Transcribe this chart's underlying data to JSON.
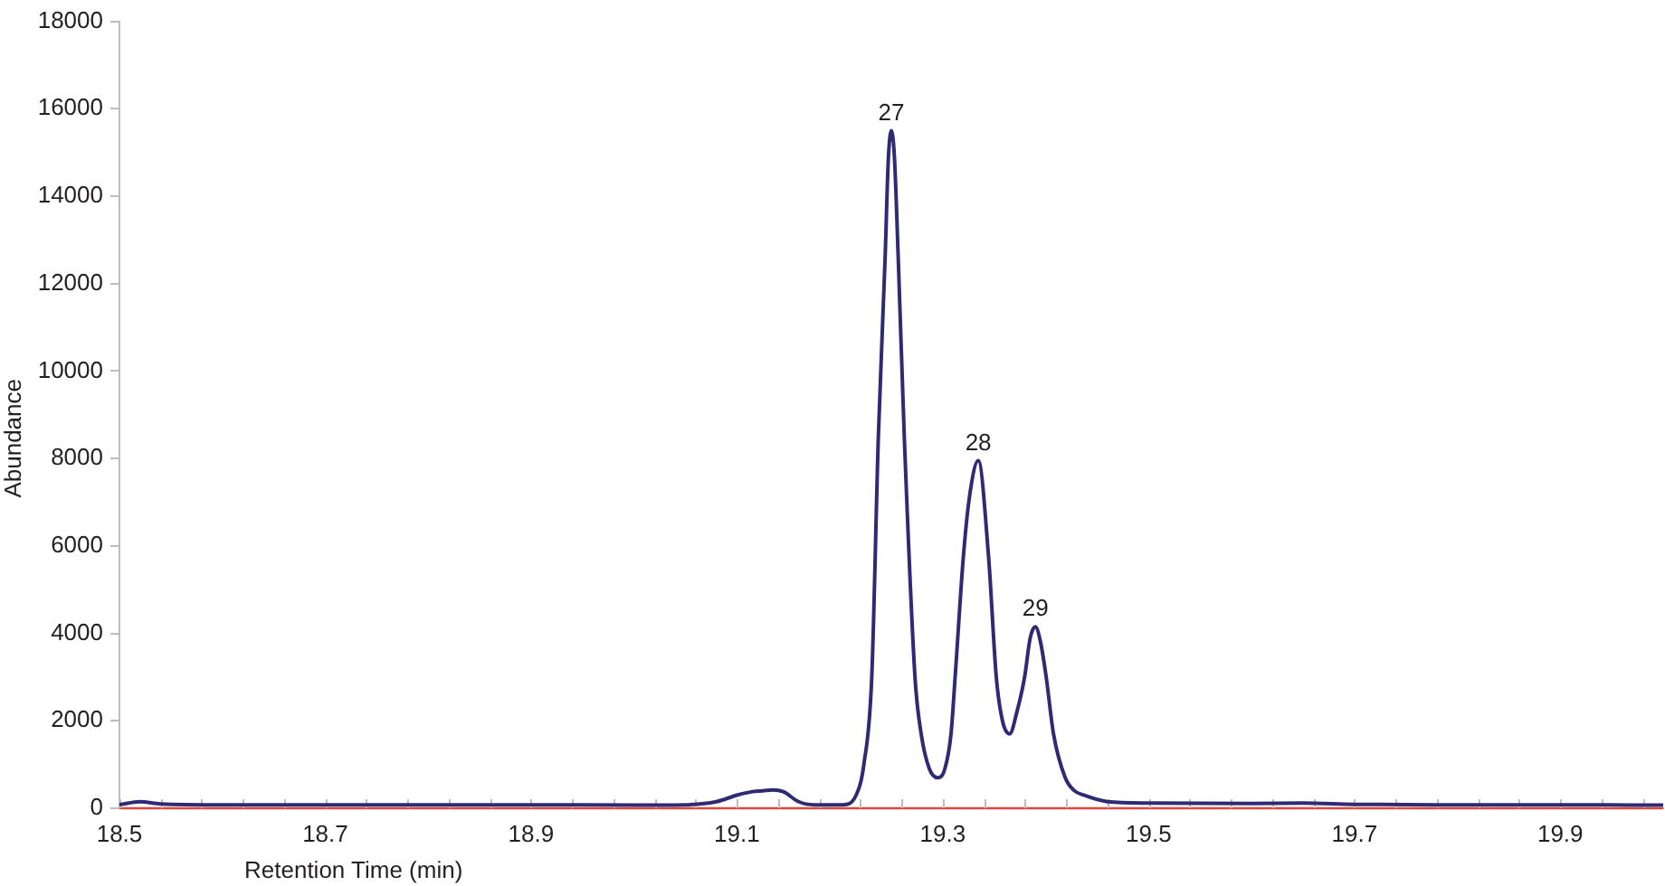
{
  "chart_data": {
    "type": "line",
    "xlabel": "Retention Time (min)",
    "ylabel": "Abundance",
    "x": [
      18.5,
      18.52,
      18.54,
      18.6,
      18.7,
      18.8,
      18.9,
      19.0,
      19.05,
      19.08,
      19.1,
      19.115,
      19.125,
      19.135,
      19.145,
      19.16,
      19.175,
      19.203,
      19.2158,
      19.2233,
      19.231,
      19.2374,
      19.244,
      19.247,
      19.25,
      19.253,
      19.2567,
      19.2626,
      19.273,
      19.279,
      19.287,
      19.295,
      19.302,
      19.308,
      19.312,
      19.32,
      19.3258,
      19.3345,
      19.3445,
      19.352,
      19.358,
      19.365,
      19.372,
      19.3795,
      19.385,
      19.39,
      19.395,
      19.4005,
      19.4076,
      19.419,
      19.428,
      19.437,
      19.46,
      19.5,
      19.6,
      19.65,
      19.7,
      19.8,
      19.9,
      20.0
    ],
    "series": [
      {
        "color": "#2e2b74",
        "values": [
          80,
          150,
          100,
          80,
          80,
          80,
          80,
          70,
          80,
          150,
          300,
          380,
          400,
          420,
          380,
          150,
          80,
          80,
          300,
          1000,
          3000,
          8500,
          12600,
          14800,
          15500,
          14900,
          12600,
          8500,
          3000,
          1700,
          900,
          700,
          900,
          1700,
          3000,
          5750,
          7100,
          7950,
          5750,
          3000,
          2000,
          1700,
          2200,
          3000,
          3900,
          4150,
          3800,
          3000,
          1700,
          700,
          400,
          300,
          150,
          120,
          110,
          120,
          90,
          80,
          80,
          70
        ]
      }
    ],
    "xlim": [
      18.5,
      20.0
    ],
    "ylim": [
      0,
      18000
    ],
    "xticks": [
      18.5,
      {
        "value": 18.54,
        "label": null
      },
      {
        "value": 18.58,
        "label": null
      },
      {
        "value": 18.62,
        "label": null
      },
      {
        "value": 18.66,
        "label": null
      },
      18.7,
      {
        "value": 18.74,
        "label": null
      },
      {
        "value": 18.78,
        "label": null
      },
      {
        "value": 18.82,
        "label": null
      },
      {
        "value": 18.86,
        "label": null
      },
      18.9,
      {
        "value": 18.94,
        "label": null
      },
      {
        "value": 18.98,
        "label": null
      },
      {
        "value": 19.02,
        "label": null
      },
      {
        "value": 19.06,
        "label": null
      },
      19.1,
      {
        "value": 19.14,
        "label": null
      },
      {
        "value": 19.18,
        "label": null
      },
      {
        "value": 19.22,
        "label": null
      },
      {
        "value": 19.26,
        "label": null
      },
      19.3,
      {
        "value": 19.34,
        "label": null
      },
      {
        "value": 19.38,
        "label": null
      },
      {
        "value": 19.42,
        "label": null
      },
      {
        "value": 19.46,
        "label": null
      },
      19.5,
      {
        "value": 19.54,
        "label": null
      },
      {
        "value": 19.58,
        "label": null
      },
      {
        "value": 19.62,
        "label": null
      },
      {
        "value": 19.66,
        "label": null
      },
      19.7,
      {
        "value": 19.74,
        "label": null
      },
      {
        "value": 19.78,
        "label": null
      },
      {
        "value": 19.82,
        "label": null
      },
      {
        "value": 19.86,
        "label": null
      },
      19.9,
      {
        "value": 19.94,
        "label": null
      },
      {
        "value": 19.98,
        "label": null
      }
    ],
    "yticks": [
      0,
      2000,
      4000,
      6000,
      8000,
      10000,
      12000,
      14000,
      16000,
      18000
    ],
    "ref_lines": [
      {
        "axis": "y",
        "value": 0,
        "color": "#e0453c"
      }
    ],
    "annotations": [
      {
        "text": "27",
        "x": 19.25,
        "y": 15500
      },
      {
        "text": "28",
        "x": 19.3345,
        "y": 7950
      },
      {
        "text": "29",
        "x": 19.39,
        "y": 4150
      }
    ],
    "marker": "none",
    "legend": false,
    "grid": false
  }
}
